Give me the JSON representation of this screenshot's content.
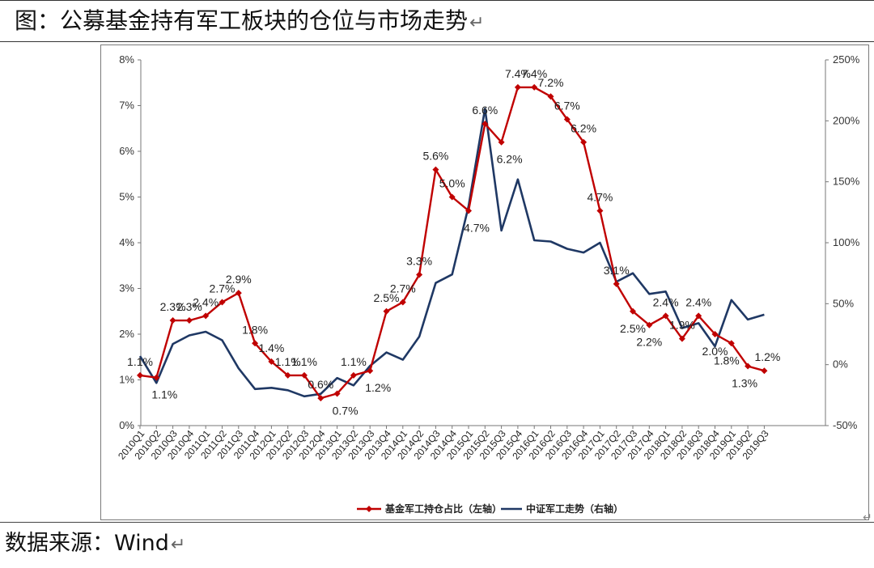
{
  "header": {
    "title": "图：公募基金持有军工板块的仓位与市场走势",
    "para_mark": "↵"
  },
  "footer": {
    "source": "数据来源：Wind",
    "para_mark": "↵"
  },
  "chart_data": {
    "type": "line",
    "title": "公募基金持有军工板块的仓位与市场走势",
    "categories": [
      "2010Q1",
      "2010Q2",
      "2010Q3",
      "2010Q4",
      "2011Q1",
      "2011Q2",
      "2011Q3",
      "2011Q4",
      "2012Q1",
      "2012Q2",
      "2012Q3",
      "2012Q4",
      "2013Q1",
      "2013Q2",
      "2013Q3",
      "2013Q4",
      "2014Q1",
      "2014Q2",
      "2014Q3",
      "2014Q4",
      "2015Q1",
      "2015Q2",
      "2015Q3",
      "2015Q4",
      "2016Q1",
      "2016Q2",
      "2016Q3",
      "2016Q4",
      "2017Q1",
      "2017Q2",
      "2017Q3",
      "2017Q4",
      "2018Q1",
      "2018Q2",
      "2018Q3",
      "2018Q4",
      "2019Q1",
      "2019Q2",
      "2019Q3"
    ],
    "left_axis": {
      "ylim": [
        0,
        8
      ],
      "ticks": [
        "0%",
        "1%",
        "2%",
        "3%",
        "4%",
        "5%",
        "6%",
        "7%",
        "8%"
      ]
    },
    "right_axis": {
      "ylim": [
        -50,
        250
      ],
      "ticks": [
        "-50%",
        "0%",
        "50%",
        "100%",
        "150%",
        "200%",
        "250%"
      ]
    },
    "series": [
      {
        "name": "基金军工持仓占比（左轴）",
        "axis": "left",
        "color": "#c00000",
        "marker": "diamond",
        "values": [
          1.1,
          1.05,
          2.3,
          2.3,
          2.4,
          2.7,
          2.9,
          1.8,
          1.4,
          1.1,
          1.1,
          0.6,
          0.7,
          1.1,
          1.2,
          2.5,
          2.7,
          3.3,
          5.6,
          5.0,
          4.7,
          6.6,
          6.2,
          7.4,
          7.4,
          7.2,
          6.7,
          6.2,
          4.7,
          3.1,
          2.5,
          2.2,
          2.4,
          1.9,
          2.4,
          2.0,
          1.8,
          1.3,
          1.2
        ]
      },
      {
        "name": "中证军工走势（右轴）",
        "axis": "right",
        "color": "#1f3864",
        "marker": "none",
        "values": [
          7,
          -15,
          17,
          24,
          27,
          20,
          -3,
          -20,
          -19,
          -21,
          -26,
          -24,
          -11,
          -17,
          -1,
          10,
          4,
          23,
          67,
          74,
          130,
          210,
          110,
          152,
          102,
          101,
          95,
          92,
          100,
          68,
          75,
          58,
          60,
          30,
          34,
          15,
          53,
          37,
          41
        ]
      }
    ],
    "data_labels": [
      "1.1%",
      "1.1%",
      "2.3%",
      "2.3%",
      "2.4%",
      "2.7%",
      "2.9%",
      "1.8%",
      "1.4%",
      "1.1%",
      "1.1%",
      "0.6%",
      "0.7%",
      "1.1%",
      "1.2%",
      "2.5%",
      "2.7%",
      "3.3%",
      "5.6%",
      "5.0%",
      "4.7%",
      "6.6%",
      "6.2%",
      "7.4%",
      "7.4%",
      "7.2%",
      "6.7%",
      "6.2%",
      "4.7%",
      "3.1%",
      "2.5%",
      "2.2%",
      "2.4%",
      "1.9%",
      "2.4%",
      "2.0%",
      "1.8%",
      "1.3%",
      "1.2%"
    ],
    "legend": {
      "position": "bottom",
      "entries": [
        "基金军工持仓占比（左轴）",
        "中证军工走势（右轴）"
      ]
    },
    "grid": false
  }
}
